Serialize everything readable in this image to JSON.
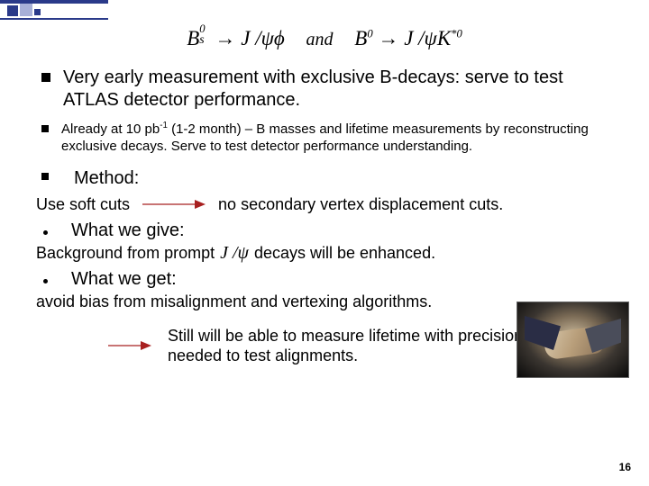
{
  "formula": {
    "left_html": "B<span style='position:relative'><sup style='position:absolute;left:0;top:-0.4em'>0</sup><sub style='position:absolute;left:0;top:0.45em'>s</sub></span>&nbsp;&nbsp;&nbsp;→ J /ψϕ",
    "and": "and",
    "right_html": "B<sup>0</sup> → J /ψK<sup>*0</sup>"
  },
  "bullet1": "Very early measurement with exclusive B-decays: serve to test ATLAS detector performance.",
  "bullet2_pre": "Already at 10 pb",
  "bullet2_sup": "-1",
  "bullet2_post": " (1-2 month) – B masses and lifetime measurements by reconstructing exclusive decays. Serve to test detector performance understanding.",
  "method_label": "Method:",
  "use_soft_cuts": "Use soft cuts",
  "no_secondary": "no secondary vertex displacement cuts.",
  "what_we_give": "What we give:",
  "bg_prefix": "Background from  prompt",
  "bg_formula_html": "J /ψ",
  "bg_suffix": "decays will be enhanced.",
  "what_we_get": "What we get:",
  "avoid_bias": "avoid bias from misalignment and vertexing algorithms.",
  "bottom_text": "Still will be able to measure lifetime with precision needed to test alignments.",
  "page_number": "16",
  "colors": {
    "accent": "#2a3a8a",
    "arrow": "#a82020",
    "text": "#000000",
    "bg": "#ffffff"
  }
}
